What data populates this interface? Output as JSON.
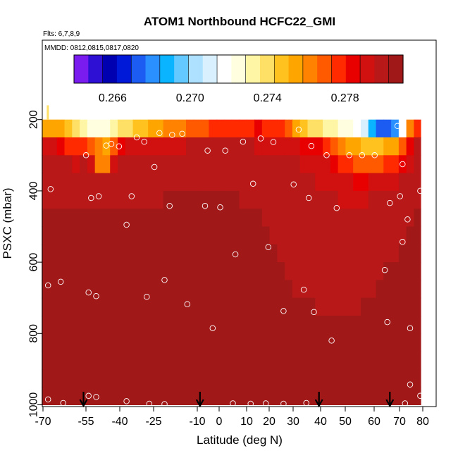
{
  "chart_data": {
    "type": "heatmap",
    "title": "ATOM1 Northbound HCFC22_GMI",
    "flights_label": "Flts: 6,7,8,9",
    "dates_label": "MMDD: 0812,0815,0817,0820",
    "xlabel": "Latitude (deg N)",
    "ylabel": "PSXC (mbar)",
    "xlim": [
      -70,
      80
    ],
    "ylim": [
      1000,
      0
    ],
    "x_ticks": [
      -70,
      -55,
      -40,
      -25,
      -10,
      0,
      10,
      20,
      30,
      40,
      50,
      60,
      70,
      80
    ],
    "x_tick_labels": [
      "-70",
      "-55",
      "-40",
      "-25",
      "-10",
      "0",
      "10",
      "20",
      "30",
      "40",
      "50",
      "60",
      "70",
      "80"
    ],
    "y_ticks": [
      200,
      400,
      600,
      800,
      1000
    ],
    "y_tick_labels": [
      "200",
      "400",
      "600",
      "800",
      "1000"
    ],
    "colorbar": {
      "ticks": [
        0.266,
        0.27,
        0.274,
        0.278
      ],
      "tick_labels": [
        "0.266",
        "0.270",
        "0.274",
        "0.278"
      ],
      "range": [
        0.264,
        0.281
      ],
      "colors": [
        "#7a1bf0",
        "#2d10d4",
        "#0000b0",
        "#0018d8",
        "#1d5cf2",
        "#2a8fff",
        "#0ab4ff",
        "#63c9ff",
        "#aee1ff",
        "#d9f1ff",
        "#ffffff",
        "#ffffe0",
        "#fff6a5",
        "#ffe066",
        "#ffc21f",
        "#ffa500",
        "#ff8200",
        "#ff5a00",
        "#ff2a00",
        "#e80000",
        "#d11010",
        "#b81818",
        "#a01818"
      ]
    },
    "lat_columns": [
      -69,
      -66,
      -63,
      -60,
      -57,
      -54,
      -51,
      -48,
      -45,
      -42,
      -39,
      -36,
      -33,
      -30,
      -27,
      -24,
      -21,
      -18,
      -15,
      -12,
      -9,
      -6,
      -3,
      0,
      3,
      6,
      9,
      12,
      15,
      18,
      21,
      24,
      27,
      30,
      33,
      36,
      39,
      42,
      45,
      48,
      51,
      54,
      57,
      60,
      63,
      66,
      69,
      72,
      75,
      78
    ],
    "pressure_levels": [
      225,
      275,
      325,
      375,
      425,
      475,
      525,
      575,
      625,
      675,
      725,
      775,
      825,
      875,
      925,
      975
    ],
    "values": [
      [
        0.2758,
        0.2757,
        0.2755,
        0.2748,
        0.2742,
        0.2735,
        0.2725,
        0.2722,
        0.2728,
        0.2734,
        0.2738,
        0.2742,
        0.2746,
        0.275,
        0.2754,
        0.2758,
        0.2761,
        0.2763,
        0.2765,
        0.2767,
        0.2769,
        0.2771,
        0.2774,
        0.2776,
        0.2777,
        0.2778,
        0.2779,
        0.278,
        0.2781,
        0.278,
        0.2778,
        0.2774,
        0.2766,
        0.2758,
        0.275,
        0.2742,
        0.2737,
        0.2734,
        0.2731,
        0.2728,
        0.2724,
        0.2718,
        0.2712,
        0.2686,
        0.2675,
        0.2672,
        0.2681,
        0.272,
        0.276,
        0.278
      ],
      [
        0.2792,
        0.279,
        0.2785,
        0.278,
        0.2776,
        0.2778,
        0.2772,
        0.2762,
        0.2758,
        0.2766,
        0.2786,
        0.279,
        0.2791,
        0.279,
        0.2792,
        0.2793,
        0.2794,
        0.2795,
        0.2795,
        0.2796,
        0.2796,
        0.2796,
        0.2796,
        0.2797,
        0.2797,
        0.2797,
        0.2796,
        0.2796,
        0.2795,
        0.2794,
        0.2794,
        0.2793,
        0.2792,
        0.279,
        0.2787,
        0.2784,
        0.2782,
        0.2779,
        0.2772,
        0.2764,
        0.2756,
        0.2752,
        0.275,
        0.275,
        0.275,
        0.2752,
        0.2756,
        0.277,
        0.2786,
        0.2798
      ],
      [
        0.2798,
        0.2797,
        0.2796,
        0.2796,
        0.2795,
        0.2796,
        0.2793,
        0.2762,
        0.276,
        0.279,
        0.2796,
        0.2797,
        0.2797,
        0.2798,
        0.2798,
        0.2798,
        0.2799,
        0.2799,
        0.28,
        0.28,
        0.2801,
        0.2801,
        0.2801,
        0.2801,
        0.2801,
        0.28,
        0.28,
        0.2799,
        0.2799,
        0.2798,
        0.2798,
        0.2797,
        0.2797,
        0.2796,
        0.2795,
        0.2792,
        0.279,
        0.2788,
        0.2784,
        0.2779,
        0.2774,
        0.277,
        0.2768,
        0.277,
        0.2772,
        0.2776,
        0.278,
        0.2786,
        0.2792,
        0.2797
      ],
      [
        0.2801,
        0.2801,
        0.2801,
        0.28,
        0.28,
        0.28,
        0.28,
        0.28,
        0.28,
        0.28,
        0.2801,
        0.2801,
        0.2801,
        0.2801,
        0.2801,
        0.2801,
        0.2802,
        0.2802,
        0.2802,
        0.2802,
        0.2802,
        0.2802,
        0.2802,
        0.2802,
        0.2802,
        0.2802,
        0.2801,
        0.2801,
        0.2801,
        0.2801,
        0.28,
        0.28,
        0.2799,
        0.2798,
        0.2797,
        0.2796,
        0.2795,
        0.2793,
        0.2791,
        0.2789,
        0.2788,
        0.2787,
        0.2787,
        0.2788,
        0.279,
        0.2792,
        0.2794,
        0.2796,
        0.2798,
        0.28
      ],
      [
        0.2802,
        0.2802,
        0.2802,
        0.2802,
        0.2802,
        0.2802,
        0.2802,
        0.2802,
        0.2802,
        0.2802,
        0.2802,
        0.2802,
        0.2802,
        0.2802,
        0.2802,
        0.2802,
        0.2803,
        0.2803,
        0.2803,
        0.2803,
        0.2803,
        0.2803,
        0.2803,
        0.2803,
        0.2803,
        0.2803,
        0.2802,
        0.2802,
        0.2802,
        0.2802,
        0.2801,
        0.2801,
        0.28,
        0.28,
        0.2799,
        0.2799,
        0.2798,
        0.2797,
        0.2796,
        0.2795,
        0.2795,
        0.2795,
        0.2795,
        0.2796,
        0.2797,
        0.2798,
        0.2799,
        0.28,
        0.2801,
        0.2802
      ],
      [
        0.2803,
        0.2803,
        0.2803,
        0.2803,
        0.2803,
        0.2803,
        0.2803,
        0.2803,
        0.2803,
        0.2803,
        0.2803,
        0.2803,
        0.2803,
        0.2803,
        0.2803,
        0.2803,
        0.2803,
        0.2803,
        0.2803,
        0.2804,
        0.2804,
        0.2804,
        0.2804,
        0.2804,
        0.2803,
        0.2803,
        0.2803,
        0.2803,
        0.2803,
        0.2802,
        0.2802,
        0.2802,
        0.2801,
        0.2801,
        0.28,
        0.28,
        0.28,
        0.2799,
        0.2799,
        0.2798,
        0.2798,
        0.2798,
        0.2798,
        0.2799,
        0.2799,
        0.28,
        0.2801,
        0.2801,
        0.2802,
        0.2803
      ],
      [
        0.2804,
        0.2804,
        0.2804,
        0.2804,
        0.2804,
        0.2804,
        0.2804,
        0.2804,
        0.2804,
        0.2804,
        0.2804,
        0.2804,
        0.2804,
        0.2804,
        0.2804,
        0.2804,
        0.2804,
        0.2804,
        0.2804,
        0.2804,
        0.2804,
        0.2804,
        0.2804,
        0.2804,
        0.2804,
        0.2804,
        0.2803,
        0.2803,
        0.2803,
        0.2803,
        0.2802,
        0.2802,
        0.2802,
        0.2801,
        0.2801,
        0.2801,
        0.28,
        0.28,
        0.28,
        0.28,
        0.28,
        0.28,
        0.28,
        0.28,
        0.28,
        0.2801,
        0.2801,
        0.2802,
        0.2803,
        0.2804
      ],
      [
        0.2805,
        0.2805,
        0.2805,
        0.2805,
        0.2805,
        0.2805,
        0.2805,
        0.2805,
        0.2805,
        0.2805,
        0.2804,
        0.2804,
        0.2804,
        0.2804,
        0.2804,
        0.2804,
        0.2804,
        0.2804,
        0.2804,
        0.2804,
        0.2804,
        0.2804,
        0.2804,
        0.2804,
        0.2804,
        0.2804,
        0.2804,
        0.2804,
        0.2803,
        0.2803,
        0.2803,
        0.2802,
        0.2802,
        0.2802,
        0.2801,
        0.2801,
        0.2801,
        0.2801,
        0.28,
        0.28,
        0.28,
        0.28,
        0.2801,
        0.2801,
        0.2801,
        0.2802,
        0.2802,
        0.2803,
        0.2804,
        0.2805
      ],
      [
        0.2806,
        0.2806,
        0.2806,
        0.2806,
        0.2806,
        0.2805,
        0.2805,
        0.2805,
        0.2805,
        0.2805,
        0.2805,
        0.2805,
        0.2805,
        0.2805,
        0.2804,
        0.2804,
        0.2804,
        0.2804,
        0.2804,
        0.2804,
        0.2804,
        0.2805,
        0.2805,
        0.2805,
        0.2805,
        0.2805,
        0.2804,
        0.2804,
        0.2804,
        0.2803,
        0.2803,
        0.2803,
        0.2802,
        0.2802,
        0.2802,
        0.2801,
        0.2801,
        0.2801,
        0.2801,
        0.2801,
        0.2801,
        0.2801,
        0.2801,
        0.2802,
        0.2802,
        0.2803,
        0.2803,
        0.2804,
        0.2805,
        0.2806
      ],
      [
        0.2806,
        0.2806,
        0.2806,
        0.2806,
        0.2806,
        0.2806,
        0.2806,
        0.2806,
        0.2806,
        0.2805,
        0.2805,
        0.2805,
        0.2805,
        0.2805,
        0.2805,
        0.2805,
        0.2805,
        0.2805,
        0.2805,
        0.2805,
        0.2805,
        0.2805,
        0.2805,
        0.2805,
        0.2805,
        0.2805,
        0.2805,
        0.2804,
        0.2804,
        0.2804,
        0.2803,
        0.2803,
        0.2803,
        0.2802,
        0.2802,
        0.2802,
        0.2802,
        0.2801,
        0.2801,
        0.2801,
        0.2801,
        0.2802,
        0.2802,
        0.2802,
        0.2803,
        0.2803,
        0.2804,
        0.2805,
        0.2805,
        0.2806
      ],
      [
        0.2807,
        0.2807,
        0.2807,
        0.2807,
        0.2807,
        0.2806,
        0.2806,
        0.2806,
        0.2806,
        0.2806,
        0.2806,
        0.2806,
        0.2806,
        0.2805,
        0.2805,
        0.2805,
        0.2805,
        0.2805,
        0.2805,
        0.2805,
        0.2805,
        0.2805,
        0.2805,
        0.2805,
        0.2805,
        0.2805,
        0.2805,
        0.2805,
        0.2805,
        0.2804,
        0.2804,
        0.2804,
        0.2804,
        0.2803,
        0.2803,
        0.2803,
        0.2802,
        0.2802,
        0.2802,
        0.2802,
        0.2802,
        0.2802,
        0.2803,
        0.2803,
        0.2803,
        0.2804,
        0.2804,
        0.2805,
        0.2806,
        0.2807
      ],
      [
        0.2807,
        0.2807,
        0.2807,
        0.2807,
        0.2807,
        0.2807,
        0.2807,
        0.2806,
        0.2806,
        0.2806,
        0.2806,
        0.2806,
        0.2806,
        0.2806,
        0.2806,
        0.2806,
        0.2806,
        0.2806,
        0.2805,
        0.2805,
        0.2805,
        0.2805,
        0.2805,
        0.2805,
        0.2806,
        0.2806,
        0.2806,
        0.2806,
        0.2805,
        0.2805,
        0.2805,
        0.2805,
        0.2804,
        0.2804,
        0.2804,
        0.2803,
        0.2803,
        0.2803,
        0.2803,
        0.2803,
        0.2803,
        0.2803,
        0.2803,
        0.2804,
        0.2804,
        0.2804,
        0.2805,
        0.2806,
        0.2806,
        0.2807
      ],
      [
        0.2808,
        0.2808,
        0.2808,
        0.2808,
        0.2807,
        0.2807,
        0.2807,
        0.2807,
        0.2807,
        0.2807,
        0.2807,
        0.2806,
        0.2806,
        0.2806,
        0.2806,
        0.2806,
        0.2806,
        0.2806,
        0.2806,
        0.2806,
        0.2806,
        0.2806,
        0.2806,
        0.2806,
        0.2806,
        0.2806,
        0.2806,
        0.2806,
        0.2806,
        0.2806,
        0.2805,
        0.2805,
        0.2805,
        0.2805,
        0.2804,
        0.2804,
        0.2804,
        0.2804,
        0.2804,
        0.2804,
        0.2804,
        0.2804,
        0.2804,
        0.2804,
        0.2805,
        0.2805,
        0.2805,
        0.2806,
        0.2807,
        0.2808
      ],
      [
        0.2808,
        0.2808,
        0.2808,
        0.2808,
        0.2808,
        0.2808,
        0.2808,
        0.2807,
        0.2807,
        0.2807,
        0.2807,
        0.2807,
        0.2807,
        0.2807,
        0.2807,
        0.2807,
        0.2807,
        0.2807,
        0.2807,
        0.2807,
        0.2807,
        0.2807,
        0.2807,
        0.2807,
        0.2807,
        0.2807,
        0.2807,
        0.2807,
        0.2806,
        0.2806,
        0.2806,
        0.2806,
        0.2806,
        0.2806,
        0.2805,
        0.2805,
        0.2805,
        0.2805,
        0.2805,
        0.2805,
        0.2805,
        0.2805,
        0.2805,
        0.2805,
        0.2805,
        0.2806,
        0.2806,
        0.2807,
        0.2807,
        0.2808
      ],
      [
        0.2809,
        0.2809,
        0.2809,
        0.2809,
        0.2809,
        0.2808,
        0.2808,
        0.2808,
        0.2808,
        0.2808,
        0.2808,
        0.2808,
        0.2808,
        0.2808,
        0.2808,
        0.2808,
        0.2808,
        0.2808,
        0.2808,
        0.2808,
        0.2808,
        0.2808,
        0.2808,
        0.2808,
        0.2808,
        0.2808,
        0.2808,
        0.2808,
        0.2808,
        0.2807,
        0.2807,
        0.2807,
        0.2807,
        0.2807,
        0.2807,
        0.2806,
        0.2806,
        0.2806,
        0.2806,
        0.2806,
        0.2806,
        0.2806,
        0.2806,
        0.2806,
        0.2807,
        0.2807,
        0.2807,
        0.2808,
        0.2808,
        0.2809
      ],
      [
        0.281,
        0.281,
        0.281,
        0.281,
        0.281,
        0.281,
        0.281,
        0.281,
        0.281,
        0.281,
        0.281,
        0.281,
        0.281,
        0.281,
        0.281,
        0.281,
        0.281,
        0.281,
        0.281,
        0.281,
        0.281,
        0.281,
        0.281,
        0.281,
        0.281,
        0.281,
        0.281,
        0.281,
        0.281,
        0.281,
        0.281,
        0.281,
        0.281,
        0.281,
        0.281,
        0.281,
        0.281,
        0.281,
        0.281,
        0.281,
        0.281,
        0.281,
        0.281,
        0.281,
        0.281,
        0.281,
        0.281,
        0.281,
        0.281,
        0.281
      ]
    ],
    "sample_points": [
      {
        "lat": -67,
        "p": 395
      },
      {
        "lat": -68,
        "p": 665
      },
      {
        "lat": -68,
        "p": 985
      },
      {
        "lat": -63,
        "p": 655
      },
      {
        "lat": -62,
        "p": 995
      },
      {
        "lat": -53,
        "p": 300
      },
      {
        "lat": -51,
        "p": 420
      },
      {
        "lat": -52,
        "p": 685
      },
      {
        "lat": -52,
        "p": 975
      },
      {
        "lat": -49,
        "p": 695
      },
      {
        "lat": -49,
        "p": 978
      },
      {
        "lat": -48,
        "p": 415
      },
      {
        "lat": -45,
        "p": 273
      },
      {
        "lat": -43,
        "p": 268
      },
      {
        "lat": -40,
        "p": 275
      },
      {
        "lat": -37,
        "p": 495
      },
      {
        "lat": -37,
        "p": 990
      },
      {
        "lat": -35,
        "p": 415
      },
      {
        "lat": -33,
        "p": 250
      },
      {
        "lat": -30,
        "p": 262
      },
      {
        "lat": -29,
        "p": 697
      },
      {
        "lat": -28,
        "p": 997
      },
      {
        "lat": -26,
        "p": 333
      },
      {
        "lat": -24,
        "p": 238
      },
      {
        "lat": -22,
        "p": 650
      },
      {
        "lat": -22,
        "p": 998
      },
      {
        "lat": -20,
        "p": 442
      },
      {
        "lat": -19,
        "p": 243
      },
      {
        "lat": -15,
        "p": 240
      },
      {
        "lat": -13,
        "p": 718
      },
      {
        "lat": -6,
        "p": 442
      },
      {
        "lat": -5,
        "p": 287
      },
      {
        "lat": -3,
        "p": 785
      },
      {
        "lat": 0,
        "p": 446
      },
      {
        "lat": 2,
        "p": 287
      },
      {
        "lat": 5,
        "p": 996
      },
      {
        "lat": 6,
        "p": 578
      },
      {
        "lat": 9,
        "p": 262
      },
      {
        "lat": 12,
        "p": 997
      },
      {
        "lat": 13,
        "p": 380
      },
      {
        "lat": 16,
        "p": 253
      },
      {
        "lat": 18,
        "p": 996
      },
      {
        "lat": 19,
        "p": 558
      },
      {
        "lat": 21,
        "p": 263
      },
      {
        "lat": 25,
        "p": 737
      },
      {
        "lat": 25,
        "p": 997
      },
      {
        "lat": 29,
        "p": 382
      },
      {
        "lat": 31,
        "p": 228
      },
      {
        "lat": 33,
        "p": 677
      },
      {
        "lat": 34,
        "p": 995
      },
      {
        "lat": 35,
        "p": 420
      },
      {
        "lat": 36,
        "p": 274
      },
      {
        "lat": 37,
        "p": 740
      },
      {
        "lat": 42,
        "p": 300
      },
      {
        "lat": 44,
        "p": 820
      },
      {
        "lat": 46,
        "p": 448
      },
      {
        "lat": 51,
        "p": 300
      },
      {
        "lat": 56,
        "p": 300
      },
      {
        "lat": 61,
        "p": 300
      },
      {
        "lat": 65,
        "p": 622
      },
      {
        "lat": 66,
        "p": 768
      },
      {
        "lat": 67,
        "p": 434
      },
      {
        "lat": 70,
        "p": 218
      },
      {
        "lat": 71,
        "p": 415
      },
      {
        "lat": 72,
        "p": 325
      },
      {
        "lat": 72,
        "p": 543
      },
      {
        "lat": 73,
        "p": 996
      },
      {
        "lat": 74,
        "p": 480
      },
      {
        "lat": 75,
        "p": 785
      },
      {
        "lat": 75,
        "p": 943
      },
      {
        "lat": 79,
        "p": 400
      },
      {
        "lat": 79,
        "p": 975
      }
    ],
    "arrow_latitudes": [
      -54,
      -8,
      39,
      67
    ],
    "plot_box_latitudes": [
      -70,
      80
    ]
  }
}
